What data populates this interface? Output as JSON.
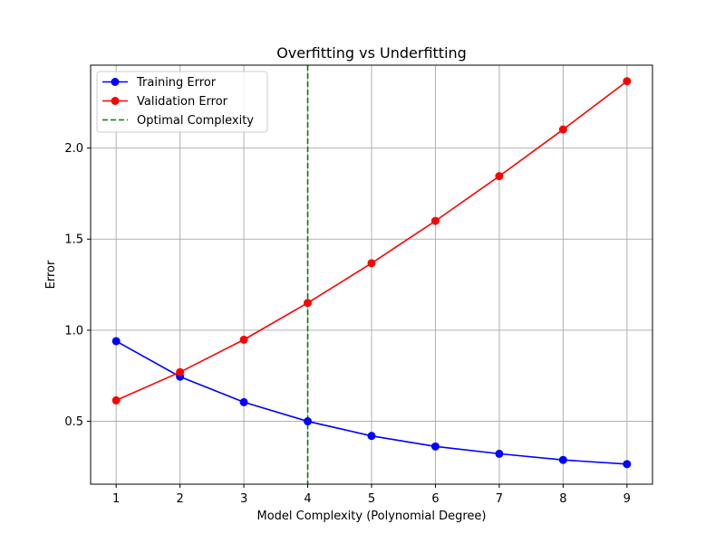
{
  "chart_data": {
    "type": "line",
    "title": "Overfitting vs Underfitting",
    "xlabel": "Model Complexity (Polynomial Degree)",
    "ylabel": "Error",
    "x": [
      1,
      2,
      3,
      4,
      5,
      6,
      7,
      8,
      9
    ],
    "xticks": [
      "1",
      "2",
      "3",
      "4",
      "5",
      "6",
      "7",
      "8",
      "9"
    ],
    "xlim": [
      0.6,
      9.4
    ],
    "ylim": [
      0.155,
      2.455
    ],
    "yticks": [
      "0.5",
      "1.0",
      "1.5",
      "2.0"
    ],
    "ytick_values": [
      0.5,
      1.0,
      1.5,
      2.0
    ],
    "grid": true,
    "legend_position": "upper-left",
    "series": [
      {
        "name": "Training Error",
        "color": "#0000ff",
        "marker": "circle",
        "values": [
          0.94,
          0.745,
          0.605,
          0.5,
          0.42,
          0.362,
          0.322,
          0.288,
          0.265
        ]
      },
      {
        "name": "Validation Error",
        "color": "#ff0000",
        "marker": "circle",
        "values": [
          0.615,
          0.77,
          0.948,
          1.15,
          1.368,
          1.6,
          1.846,
          2.102,
          2.367
        ]
      }
    ],
    "reference_lines": [
      {
        "name": "Optimal Complexity",
        "orientation": "vertical",
        "x": 4,
        "color": "#008000",
        "style": "dashed"
      }
    ]
  }
}
